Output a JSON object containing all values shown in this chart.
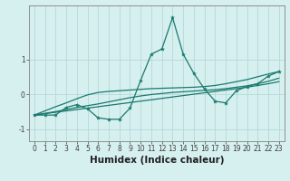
{
  "xlabel": "Humidex (Indice chaleur)",
  "background_color": "#d6efef",
  "grid_color": "#b8d8d8",
  "line_color": "#1a7a6e",
  "x_data": [
    0,
    1,
    2,
    3,
    4,
    5,
    6,
    7,
    8,
    9,
    10,
    11,
    12,
    13,
    14,
    15,
    16,
    17,
    18,
    19,
    20,
    21,
    22,
    23
  ],
  "y_main": [
    -0.6,
    -0.6,
    -0.6,
    -0.38,
    -0.3,
    -0.42,
    -0.68,
    -0.72,
    -0.72,
    -0.4,
    0.4,
    1.15,
    1.3,
    2.2,
    1.15,
    0.6,
    0.15,
    -0.2,
    -0.25,
    0.1,
    0.22,
    0.3,
    0.52,
    0.65
  ],
  "y_line1": [
    -0.6,
    -0.48,
    -0.36,
    -0.25,
    -0.13,
    -0.02,
    0.05,
    0.08,
    0.1,
    0.12,
    0.14,
    0.16,
    0.17,
    0.18,
    0.19,
    0.2,
    0.22,
    0.25,
    0.3,
    0.36,
    0.42,
    0.5,
    0.58,
    0.65
  ],
  "y_line2": [
    -0.6,
    -0.55,
    -0.5,
    -0.44,
    -0.38,
    -0.33,
    -0.28,
    -0.22,
    -0.16,
    -0.1,
    -0.05,
    -0.01,
    0.02,
    0.05,
    0.07,
    0.09,
    0.11,
    0.13,
    0.16,
    0.2,
    0.24,
    0.3,
    0.37,
    0.46
  ],
  "y_line3": [
    -0.6,
    -0.56,
    -0.52,
    -0.48,
    -0.44,
    -0.4,
    -0.36,
    -0.32,
    -0.28,
    -0.24,
    -0.2,
    -0.16,
    -0.12,
    -0.08,
    -0.04,
    0.0,
    0.04,
    0.08,
    0.12,
    0.16,
    0.2,
    0.25,
    0.3,
    0.36
  ],
  "xlim": [
    -0.5,
    23.5
  ],
  "ylim": [
    -1.35,
    2.55
  ],
  "yticks": [
    -1,
    0,
    1
  ],
  "xticks": [
    0,
    1,
    2,
    3,
    4,
    5,
    6,
    7,
    8,
    9,
    10,
    11,
    12,
    13,
    14,
    15,
    16,
    17,
    18,
    19,
    20,
    21,
    22,
    23
  ],
  "tick_fontsize": 5.5,
  "xlabel_fontsize": 7.5
}
